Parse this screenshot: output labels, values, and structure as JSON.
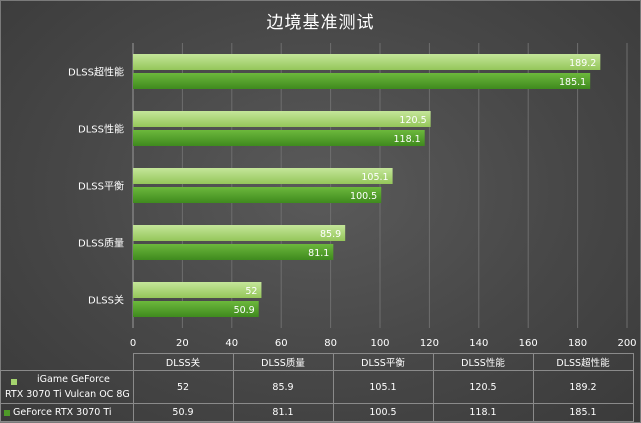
{
  "chart_data": {
    "type": "bar",
    "orientation": "horizontal",
    "title": "边境基准测试",
    "categories": [
      "DLSS超性能",
      "DLSS性能",
      "DLSS平衡",
      "DLSS质量",
      "DLSS关"
    ],
    "series": [
      {
        "name_line1": "iGame GeForce",
        "name_line2": "RTX 3070 Ti Vulcan OC 8G",
        "color": "#a5d46e",
        "values": [
          189.2,
          120.5,
          105.1,
          85.9,
          52
        ]
      },
      {
        "name": "GeForce RTX 3070 Ti",
        "color": "#4e9a28",
        "values": [
          185.1,
          118.1,
          100.5,
          81.1,
          50.9
        ]
      }
    ],
    "value_labels": [
      [
        "189.2",
        "120.5",
        "105.1",
        "85.9",
        "52"
      ],
      [
        "185.1",
        "118.1",
        "100.5",
        "81.1",
        "50.9"
      ]
    ],
    "xlim": [
      0,
      200
    ],
    "xticks": [
      "0",
      "20",
      "40",
      "60",
      "80",
      "100",
      "120",
      "140",
      "160",
      "180",
      "200"
    ],
    "grid": true,
    "legend": "data-table-bottom",
    "table": {
      "headers": [
        "DLSS关",
        "DLSS质量",
        "DLSS平衡",
        "DLSS性能",
        "DLSS超性能"
      ],
      "rows": [
        [
          "52",
          "85.9",
          "105.1",
          "120.5",
          "189.2"
        ],
        [
          "50.9",
          "81.1",
          "100.5",
          "118.1",
          "185.1"
        ]
      ]
    }
  }
}
